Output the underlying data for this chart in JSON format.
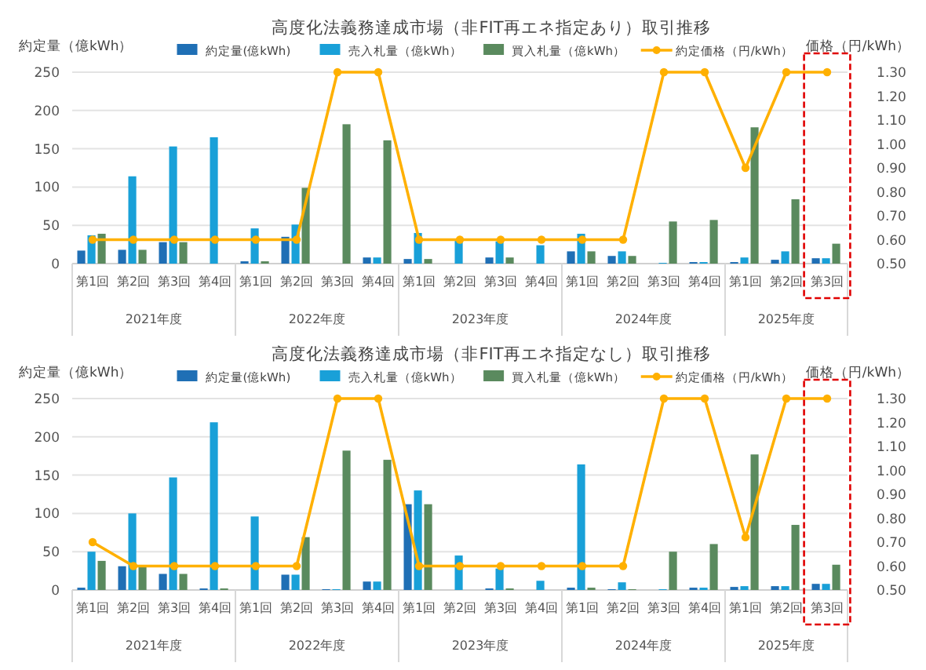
{
  "chart_data": [
    {
      "type": "bar",
      "title": "高度化法義務達成市場（非FIT再エネ指定あり）取引推移",
      "ylabel": "約定量（億kWh）",
      "y2label": "価格（円/kWh）",
      "categories": [
        "第1回",
        "第2回",
        "第3回",
        "第4回",
        "第1回",
        "第2回",
        "第3回",
        "第4回",
        "第1回",
        "第2回",
        "第3回",
        "第4回",
        "第1回",
        "第2回",
        "第3回",
        "第4回",
        "第1回",
        "第2回",
        "第3回"
      ],
      "annotations": [
        "2021年度",
        "2022年度",
        "2023年度",
        "2024年度",
        "2025年度"
      ],
      "series": [
        {
          "name": "約定量(億kWh)",
          "color": "#1f6fb5",
          "values": [
            17,
            18,
            28,
            0,
            3,
            35,
            0,
            8,
            6,
            0,
            8,
            0,
            16,
            10,
            0,
            2,
            2,
            5,
            7
          ]
        },
        {
          "name": "売入札量（億kWh）",
          "color": "#19a0d8",
          "values": [
            37,
            114,
            153,
            165,
            46,
            51,
            0,
            8,
            40,
            30,
            29,
            24,
            39,
            16,
            1,
            2,
            8,
            16,
            7
          ]
        },
        {
          "name": "買入札量（億kWh）",
          "color": "#5a8a5e",
          "values": [
            39,
            18,
            28,
            0,
            3,
            99,
            182,
            161,
            6,
            0,
            8,
            0,
            16,
            10,
            55,
            57,
            178,
            84,
            26
          ]
        },
        {
          "name": "約定価格（円/kWh）",
          "type": "line",
          "axis": "y2",
          "color": "#ffb000",
          "marker": "circle",
          "values": [
            0.6,
            0.6,
            0.6,
            0.6,
            0.6,
            0.6,
            1.3,
            1.3,
            0.6,
            0.6,
            0.6,
            0.6,
            0.6,
            0.6,
            1.3,
            1.3,
            0.9,
            1.3,
            1.3
          ]
        }
      ],
      "ylim": [
        0,
        250
      ],
      "yticks": [
        0,
        50,
        100,
        150,
        200,
        250
      ],
      "y2lim": [
        0.5,
        1.3
      ],
      "y2ticks": [
        {
          "value": 0.5,
          "label": "0.50"
        },
        {
          "value": 0.6,
          "label": "0.60"
        },
        {
          "value": 0.7,
          "label": "0.70"
        },
        {
          "value": 0.8,
          "label": "0.80"
        },
        {
          "value": 0.9,
          "label": "0.90"
        },
        {
          "value": 1.0,
          "label": "1.00"
        },
        {
          "value": 1.1,
          "label": "1.10"
        },
        {
          "value": 1.2,
          "label": "1.20"
        },
        {
          "value": 1.3,
          "label": "1.30"
        }
      ],
      "grid": "y",
      "legend": "top"
    },
    {
      "type": "bar",
      "title": "高度化法義務達成市場（非FIT再エネ指定なし）取引推移",
      "ylabel": "約定量（億kWh）",
      "y2label": "価格（円/kWh）",
      "categories": [
        "第1回",
        "第2回",
        "第3回",
        "第4回",
        "第1回",
        "第2回",
        "第3回",
        "第4回",
        "第1回",
        "第2回",
        "第3回",
        "第4回",
        "第1回",
        "第2回",
        "第3回",
        "第4回",
        "第1回",
        "第2回",
        "第3回"
      ],
      "annotations": [
        "2021年度",
        "2022年度",
        "2023年度",
        "2024年度",
        "2025年度"
      ],
      "series": [
        {
          "name": "約定量(億kWh)",
          "color": "#1f6fb5",
          "values": [
            3,
            31,
            21,
            2,
            0,
            20,
            1,
            11,
            112,
            0,
            2,
            0,
            3,
            1,
            0,
            3,
            4,
            5,
            8
          ]
        },
        {
          "name": "売入札量（億kWh）",
          "color": "#19a0d8",
          "values": [
            50,
            100,
            147,
            219,
            96,
            20,
            1,
            11,
            130,
            45,
            28,
            12,
            164,
            10,
            1,
            3,
            5,
            5,
            8
          ]
        },
        {
          "name": "買入札量（億kWh）",
          "color": "#5a8a5e",
          "values": [
            38,
            31,
            21,
            2,
            0,
            69,
            182,
            170,
            112,
            0,
            2,
            0,
            3,
            1,
            50,
            60,
            177,
            85,
            33
          ]
        },
        {
          "name": "約定価格（円/kWh）",
          "type": "line",
          "axis": "y2",
          "color": "#ffb000",
          "marker": "circle",
          "values": [
            0.7,
            0.6,
            0.6,
            0.6,
            0.6,
            0.6,
            1.3,
            1.3,
            0.6,
            0.6,
            0.6,
            0.6,
            0.6,
            0.6,
            1.3,
            1.3,
            0.72,
            1.3,
            1.3
          ]
        }
      ],
      "ylim": [
        0,
        250
      ],
      "yticks": [
        0,
        50,
        100,
        150,
        200,
        250
      ],
      "y2lim": [
        0.5,
        1.3
      ],
      "y2ticks": [
        {
          "value": 0.5,
          "label": "0.50"
        },
        {
          "value": 0.6,
          "label": "0.60"
        },
        {
          "value": 0.7,
          "label": "0.70"
        },
        {
          "value": 0.8,
          "label": "0.80"
        },
        {
          "value": 0.9,
          "label": "0.90"
        },
        {
          "value": 1.0,
          "label": "1.00"
        },
        {
          "value": 1.1,
          "label": "1.10"
        },
        {
          "value": 1.2,
          "label": "1.20"
        },
        {
          "value": 1.3,
          "label": "1.30"
        }
      ],
      "grid": "y",
      "legend": "top"
    }
  ]
}
